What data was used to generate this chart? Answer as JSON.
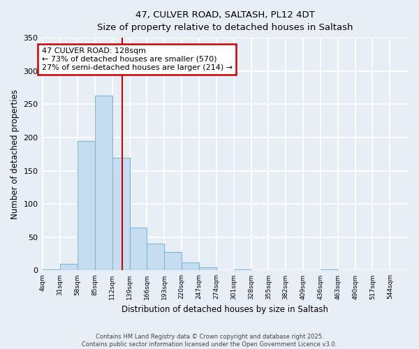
{
  "title": "47, CULVER ROAD, SALTASH, PL12 4DT",
  "subtitle": "Size of property relative to detached houses in Saltash",
  "xlabel": "Distribution of detached houses by size in Saltash",
  "ylabel": "Number of detached properties",
  "bar_labels": [
    "4sqm",
    "31sqm",
    "58sqm",
    "85sqm",
    "112sqm",
    "139sqm",
    "166sqm",
    "193sqm",
    "220sqm",
    "247sqm",
    "274sqm",
    "301sqm",
    "328sqm",
    "355sqm",
    "382sqm",
    "409sqm",
    "436sqm",
    "463sqm",
    "490sqm",
    "517sqm",
    "544sqm"
  ],
  "bar_values": [
    2,
    10,
    195,
    263,
    170,
    65,
    40,
    28,
    12,
    5,
    0,
    2,
    0,
    0,
    0,
    0,
    1,
    0,
    0,
    0,
    0
  ],
  "bar_color": "#c6dcf0",
  "bar_edge_color": "#7eb8d4",
  "vline_x": 128,
  "vline_color": "#cc0000",
  "annotation_title": "47 CULVER ROAD: 128sqm",
  "annotation_line1": "← 73% of detached houses are smaller (570)",
  "annotation_line2": "27% of semi-detached houses are larger (214) →",
  "annotation_box_color": "#cc0000",
  "ylim": [
    0,
    350
  ],
  "yticks": [
    0,
    50,
    100,
    150,
    200,
    250,
    300,
    350
  ],
  "bg_color": "#e8eef5",
  "grid_color": "#ffffff",
  "footer1": "Contains HM Land Registry data © Crown copyright and database right 2025.",
  "footer2": "Contains public sector information licensed under the Open Government Licence v3.0.",
  "bin_width": 27
}
